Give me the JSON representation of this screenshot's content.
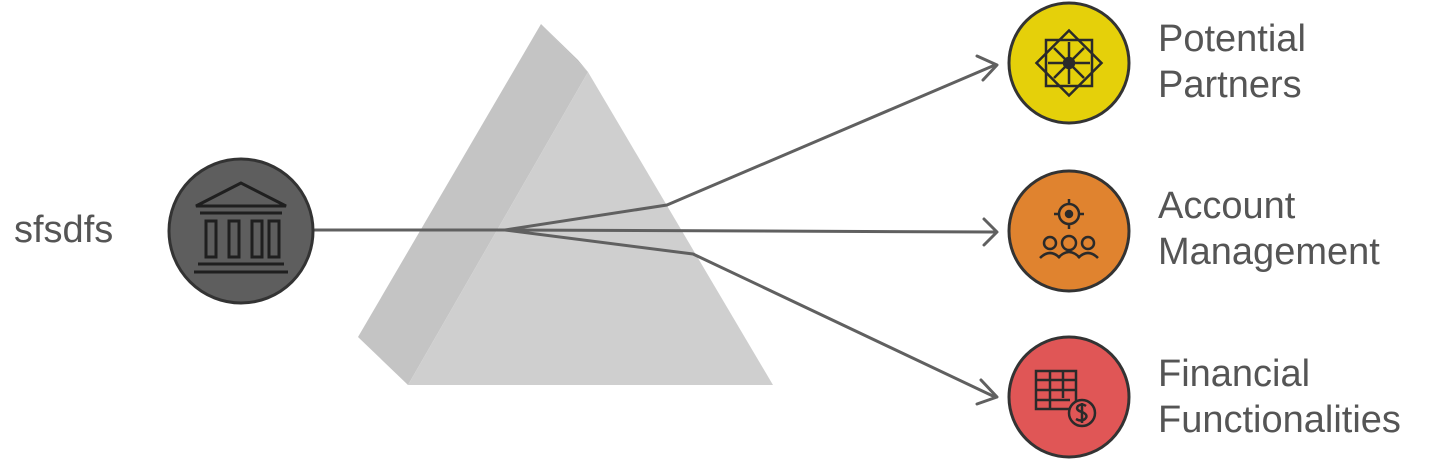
{
  "source": {
    "label": "sfsdfs",
    "icon": "bank-building-icon",
    "color": "#5e5e5e"
  },
  "prism": {
    "color": "#cccccc"
  },
  "arrow_color": "#606060",
  "outputs": [
    {
      "line1": "Potential",
      "line2": "Partners",
      "icon": "network-nodes-icon",
      "color": "#e5d00a"
    },
    {
      "line1": "Account",
      "line2": "Management",
      "icon": "gear-people-icon",
      "color": "#e0832f"
    },
    {
      "line1": "Financial",
      "line2": "Functionalities",
      "icon": "spreadsheet-dollar-icon",
      "color": "#e05656"
    }
  ]
}
